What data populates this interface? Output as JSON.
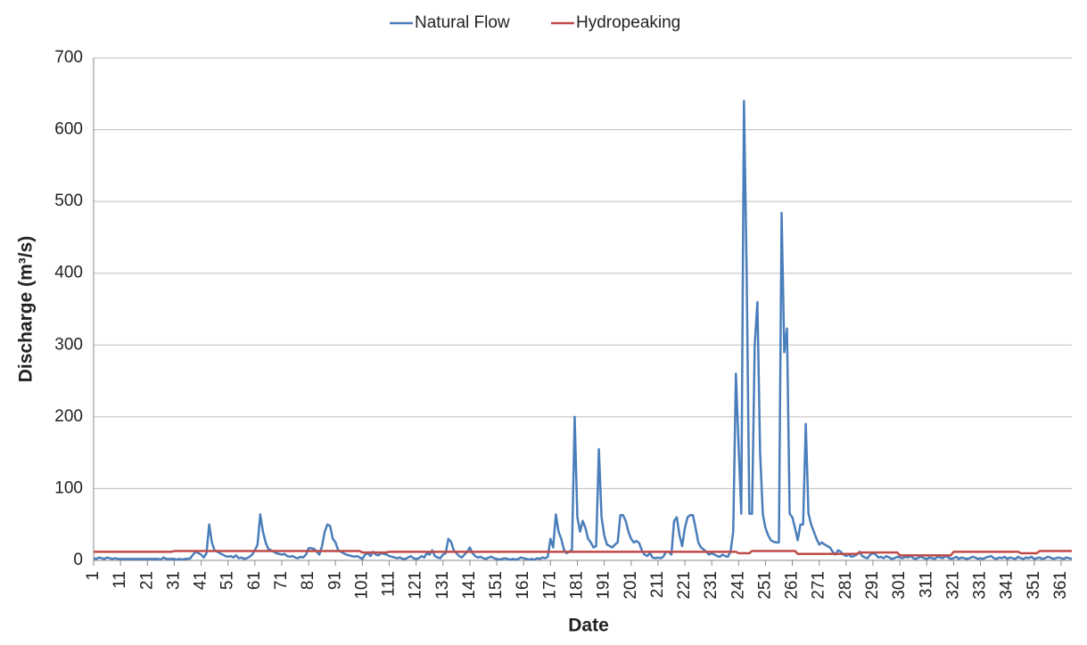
{
  "chart_data": {
    "type": "line",
    "x_label": "Date",
    "y_label": "Discharge (m³/s)",
    "x": [
      1,
      2,
      3,
      4,
      5,
      6,
      7,
      8,
      9,
      10,
      11,
      12,
      13,
      14,
      15,
      16,
      17,
      18,
      19,
      20,
      21,
      22,
      23,
      24,
      25,
      26,
      27,
      28,
      29,
      30,
      31,
      32,
      33,
      34,
      35,
      36,
      37,
      38,
      39,
      40,
      41,
      42,
      43,
      44,
      45,
      46,
      47,
      48,
      49,
      50,
      51,
      52,
      53,
      54,
      55,
      56,
      57,
      58,
      59,
      60,
      61,
      62,
      63,
      64,
      65,
      66,
      67,
      68,
      69,
      70,
      71,
      72,
      73,
      74,
      75,
      76,
      77,
      78,
      79,
      80,
      81,
      82,
      83,
      84,
      85,
      86,
      87,
      88,
      89,
      90,
      91,
      92,
      93,
      94,
      95,
      96,
      97,
      98,
      99,
      100,
      101,
      102,
      103,
      104,
      105,
      106,
      107,
      108,
      109,
      110,
      111,
      112,
      113,
      114,
      115,
      116,
      117,
      118,
      119,
      120,
      121,
      122,
      123,
      124,
      125,
      126,
      127,
      128,
      129,
      130,
      131,
      132,
      133,
      134,
      135,
      136,
      137,
      138,
      139,
      140,
      141,
      142,
      143,
      144,
      145,
      146,
      147,
      148,
      149,
      150,
      151,
      152,
      153,
      154,
      155,
      156,
      157,
      158,
      159,
      160,
      161,
      162,
      163,
      164,
      165,
      166,
      167,
      168,
      169,
      170,
      171,
      172,
      173,
      174,
      175,
      176,
      177,
      178,
      179,
      180,
      181,
      182,
      183,
      184,
      185,
      186,
      187,
      188,
      189,
      190,
      191,
      192,
      193,
      194,
      195,
      196,
      197,
      198,
      199,
      200,
      201,
      202,
      203,
      204,
      205,
      206,
      207,
      208,
      209,
      210,
      211,
      212,
      213,
      214,
      215,
      216,
      217,
      218,
      219,
      220,
      221,
      222,
      223,
      224,
      225,
      226,
      227,
      228,
      229,
      230,
      231,
      232,
      233,
      234,
      235,
      236,
      237,
      238,
      239,
      240,
      241,
      242,
      243,
      244,
      245,
      246,
      247,
      248,
      249,
      250,
      251,
      252,
      253,
      254,
      255,
      256,
      257,
      258,
      259,
      260,
      261,
      262,
      263,
      264,
      265,
      266,
      267,
      268,
      269,
      270,
      271,
      272,
      273,
      274,
      275,
      276,
      277,
      278,
      279,
      280,
      281,
      282,
      283,
      284,
      285,
      286,
      287,
      288,
      289,
      290,
      291,
      292,
      293,
      294,
      295,
      296,
      297,
      298,
      299,
      300,
      301,
      302,
      303,
      304,
      305,
      306,
      307,
      308,
      309,
      310,
      311,
      312,
      313,
      314,
      315,
      316,
      317,
      318,
      319,
      320,
      321,
      322,
      323,
      324,
      325,
      326,
      327,
      328,
      329,
      330,
      331,
      332,
      333,
      334,
      335,
      336,
      337,
      338,
      339,
      340,
      341,
      342,
      343,
      344,
      345,
      346,
      347,
      348,
      349,
      350,
      351,
      352,
      353,
      354,
      355,
      356,
      357,
      358,
      359,
      360,
      361,
      362,
      363,
      364,
      365
    ],
    "series": [
      {
        "name": "Natural Flow",
        "color": "#4a7ebb",
        "values": [
          3,
          2,
          4,
          3,
          2,
          4,
          3,
          2,
          3,
          2,
          2,
          2,
          2,
          2,
          2,
          2,
          2,
          2,
          2,
          2,
          2,
          2,
          2,
          2,
          2,
          1,
          4,
          2,
          2,
          2,
          2,
          1,
          2,
          1,
          2,
          2,
          3,
          8,
          12,
          10,
          8,
          4,
          10,
          50,
          25,
          14,
          12,
          10,
          8,
          6,
          5,
          6,
          4,
          7,
          3,
          4,
          2,
          3,
          5,
          8,
          14,
          22,
          64,
          40,
          25,
          16,
          14,
          12,
          10,
          9,
          8,
          9,
          6,
          5,
          6,
          4,
          3,
          5,
          4,
          8,
          17,
          17,
          16,
          12,
          8,
          20,
          40,
          50,
          48,
          30,
          25,
          14,
          12,
          10,
          8,
          7,
          6,
          5,
          6,
          4,
          2,
          8,
          10,
          6,
          12,
          8,
          7,
          10,
          9,
          8,
          6,
          5,
          4,
          3,
          4,
          2,
          2,
          4,
          6,
          3,
          2,
          3,
          6,
          4,
          10,
          8,
          14,
          6,
          4,
          3,
          8,
          10,
          30,
          26,
          14,
          10,
          6,
          4,
          8,
          12,
          18,
          10,
          6,
          4,
          5,
          3,
          2,
          4,
          5,
          3,
          2,
          1,
          2,
          3,
          2,
          1,
          2,
          1,
          2,
          4,
          3,
          2,
          1,
          2,
          1,
          3,
          2,
          4,
          3,
          5,
          30,
          18,
          64,
          40,
          30,
          15,
          10,
          12,
          15,
          200,
          60,
          40,
          55,
          45,
          30,
          25,
          18,
          20,
          155,
          60,
          35,
          22,
          20,
          18,
          22,
          25,
          63,
          63,
          55,
          40,
          30,
          25,
          27,
          24,
          14,
          8,
          6,
          10,
          4,
          3,
          4,
          3,
          5,
          12,
          12,
          8,
          55,
          60,
          35,
          20,
          45,
          60,
          63,
          63,
          45,
          25,
          18,
          15,
          12,
          8,
          10,
          8,
          6,
          5,
          8,
          6,
          5,
          12,
          40,
          260,
          160,
          65,
          640,
          400,
          65,
          65,
          300,
          360,
          150,
          65,
          45,
          35,
          28,
          26,
          25,
          25,
          484,
          290,
          323,
          65,
          60,
          45,
          28,
          50,
          50,
          190,
          65,
          50,
          40,
          30,
          22,
          25,
          22,
          20,
          18,
          12,
          8,
          14,
          12,
          8,
          6,
          8,
          5,
          6,
          8,
          12,
          6,
          4,
          3,
          8,
          10,
          8,
          4,
          5,
          3,
          6,
          4,
          2,
          3,
          5,
          4,
          3,
          5,
          4,
          6,
          3,
          2,
          4,
          5,
          3,
          2,
          4,
          3,
          2,
          5,
          4,
          3,
          6,
          4,
          2,
          3,
          5,
          2,
          4,
          3,
          2,
          3,
          5,
          4,
          2,
          3,
          2,
          4,
          5,
          6,
          3,
          2,
          4,
          3,
          5,
          2,
          4,
          3,
          2,
          5,
          3,
          2,
          4,
          3,
          5,
          2,
          3,
          4,
          2,
          3,
          5,
          4,
          2,
          3,
          4,
          3,
          2,
          4,
          3,
          2
        ]
      },
      {
        "name": "Hydropeaking",
        "color": "#be4b48",
        "values": [
          12,
          12,
          12,
          12,
          12,
          12,
          12,
          12,
          12,
          12,
          12,
          12,
          12,
          12,
          12,
          12,
          12,
          12,
          12,
          12,
          12,
          12,
          12,
          12,
          12,
          12,
          12,
          12,
          12,
          12,
          13,
          13,
          13,
          13,
          13,
          13,
          13,
          13,
          13,
          13,
          13,
          13,
          13,
          13,
          13,
          13,
          13,
          13,
          13,
          13,
          13,
          13,
          13,
          13,
          13,
          13,
          13,
          13,
          13,
          13,
          13,
          13,
          13,
          13,
          13,
          13,
          13,
          13,
          13,
          13,
          13,
          13,
          13,
          13,
          13,
          13,
          13,
          13,
          13,
          13,
          13,
          13,
          13,
          13,
          13,
          13,
          13,
          13,
          13,
          13,
          13,
          13,
          13,
          13,
          13,
          13,
          13,
          13,
          13,
          13,
          11,
          11,
          11,
          11,
          11,
          11,
          11,
          11,
          11,
          11,
          12,
          12,
          12,
          12,
          12,
          12,
          12,
          12,
          12,
          12,
          12,
          12,
          12,
          12,
          12,
          12,
          12,
          12,
          12,
          12,
          12,
          12,
          12,
          12,
          12,
          12,
          12,
          12,
          12,
          12,
          12,
          12,
          12,
          12,
          12,
          12,
          12,
          12,
          12,
          12,
          12,
          12,
          12,
          12,
          12,
          12,
          12,
          12,
          12,
          12,
          12,
          12,
          12,
          12,
          12,
          12,
          12,
          12,
          12,
          12,
          12,
          12,
          12,
          12,
          12,
          12,
          12,
          12,
          12,
          12,
          12,
          12,
          12,
          12,
          12,
          12,
          12,
          12,
          12,
          12,
          12,
          12,
          12,
          12,
          12,
          12,
          12,
          12,
          12,
          12,
          12,
          12,
          12,
          12,
          12,
          12,
          12,
          12,
          12,
          12,
          12,
          12,
          12,
          12,
          12,
          12,
          12,
          12,
          12,
          12,
          12,
          12,
          12,
          12,
          12,
          12,
          12,
          12,
          12,
          12,
          12,
          12,
          12,
          12,
          12,
          12,
          12,
          12,
          12,
          12,
          10,
          10,
          10,
          10,
          10,
          13,
          13,
          13,
          13,
          13,
          13,
          13,
          13,
          13,
          13,
          13,
          13,
          13,
          13,
          13,
          13,
          13,
          9,
          9,
          9,
          9,
          9,
          9,
          9,
          9,
          9,
          9,
          9,
          9,
          9,
          9,
          9,
          9,
          9,
          9,
          9,
          9,
          9,
          9,
          9,
          11,
          11,
          11,
          11,
          11,
          11,
          11,
          11,
          11,
          11,
          11,
          11,
          11,
          11,
          11,
          7,
          7,
          7,
          7,
          7,
          7,
          7,
          7,
          7,
          7,
          7,
          7,
          7,
          7,
          7,
          7,
          7,
          7,
          7,
          7,
          12,
          12,
          12,
          12,
          12,
          12,
          12,
          12,
          12,
          12,
          12,
          12,
          12,
          12,
          12,
          12,
          12,
          12,
          12,
          12,
          12,
          12,
          12,
          12,
          12,
          10,
          10,
          10,
          10,
          10,
          10,
          10,
          13,
          13,
          13,
          13,
          13,
          13,
          13,
          13,
          13,
          13,
          13,
          13,
          13
        ]
      }
    ],
    "xlim": [
      1,
      365
    ],
    "xticks": [
      1,
      11,
      21,
      31,
      41,
      51,
      61,
      71,
      81,
      91,
      101,
      111,
      121,
      131,
      141,
      151,
      161,
      171,
      181,
      191,
      201,
      211,
      221,
      231,
      241,
      251,
      261,
      271,
      281,
      291,
      301,
      311,
      321,
      331,
      341,
      351,
      361
    ],
    "ylim": [
      0,
      700
    ],
    "yticks": [
      0,
      100,
      200,
      300,
      400,
      500,
      600,
      700
    ],
    "grid": true,
    "legend": "top"
  }
}
